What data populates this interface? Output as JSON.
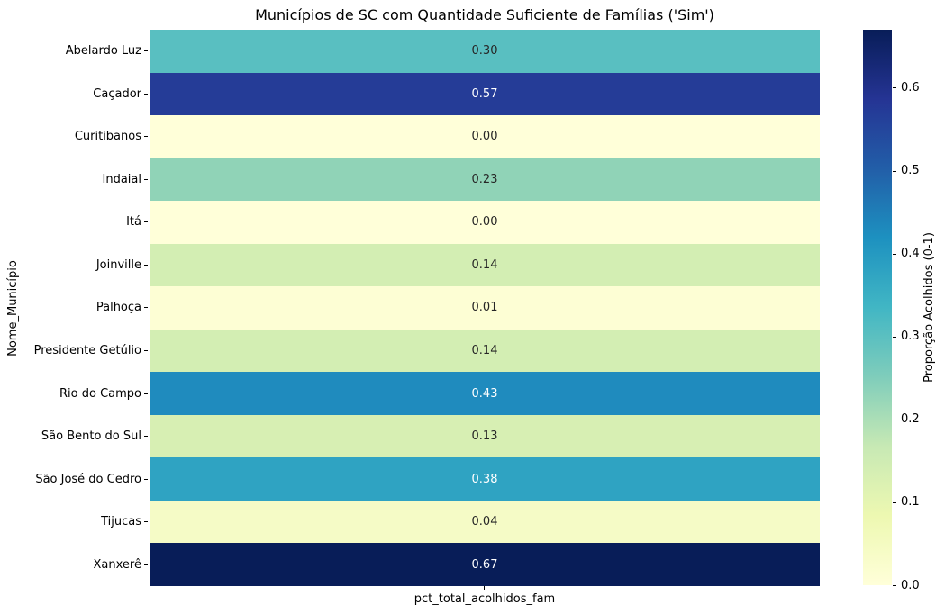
{
  "chart_data": {
    "type": "heatmap",
    "title": "Municípios de SC com Quantidade Suficiente de Famílias ('Sim')",
    "xlabel": "",
    "ylabel": "Nome_Município",
    "columns": [
      "pct_total_acolhidos_fam"
    ],
    "vmin": 0.0,
    "vmax": 0.67,
    "grid": false,
    "colormap_name": "YlGnBu",
    "colormap_stops": [
      {
        "pos": 0.0,
        "color": "#ffffd9"
      },
      {
        "pos": 0.125,
        "color": "#edf8b1"
      },
      {
        "pos": 0.25,
        "color": "#c7e9b4"
      },
      {
        "pos": 0.375,
        "color": "#7fcdbb"
      },
      {
        "pos": 0.5,
        "color": "#41b6c4"
      },
      {
        "pos": 0.625,
        "color": "#1d91c0"
      },
      {
        "pos": 0.75,
        "color": "#225ea8"
      },
      {
        "pos": 0.875,
        "color": "#253494"
      },
      {
        "pos": 1.0,
        "color": "#081d58"
      }
    ],
    "rows": [
      {
        "label": "Abelardo Luz",
        "value": 0.3,
        "display": "0.30",
        "color": "#59bfc1",
        "text_color": "#262626"
      },
      {
        "label": "Caçador",
        "value": 0.57,
        "display": "0.57",
        "color": "#253c97",
        "text_color": "#ffffff"
      },
      {
        "label": "Curitibanos",
        "value": 0.0,
        "display": "0.00",
        "color": "#ffffd9",
        "text_color": "#262626"
      },
      {
        "label": "Indaial",
        "value": 0.23,
        "display": "0.23",
        "color": "#90d3b7",
        "text_color": "#262626"
      },
      {
        "label": "Itá",
        "value": 0.0,
        "display": "0.00",
        "color": "#ffffd9",
        "text_color": "#262626"
      },
      {
        "label": "Joinville",
        "value": 0.14,
        "display": "0.14",
        "color": "#d3eeb3",
        "text_color": "#262626"
      },
      {
        "label": "Palhoça",
        "value": 0.01,
        "display": "0.01",
        "color": "#fdfed4",
        "text_color": "#262626"
      },
      {
        "label": "Presidente Getúlio",
        "value": 0.14,
        "display": "0.14",
        "color": "#d3eeb3",
        "text_color": "#262626"
      },
      {
        "label": "Rio do Campo",
        "value": 0.43,
        "display": "0.43",
        "color": "#1f8bbe",
        "text_color": "#ffffff"
      },
      {
        "label": "São Bento do Sul",
        "value": 0.13,
        "display": "0.13",
        "color": "#d7efb3",
        "text_color": "#262626"
      },
      {
        "label": "São José do Cedro",
        "value": 0.38,
        "display": "0.38",
        "color": "#2fa3c2",
        "text_color": "#ffffff"
      },
      {
        "label": "Tijucas",
        "value": 0.04,
        "display": "0.04",
        "color": "#f5fbc6",
        "text_color": "#262626"
      },
      {
        "label": "Xanxerê",
        "value": 0.67,
        "display": "0.67",
        "color": "#081d58",
        "text_color": "#ffffff"
      }
    ],
    "colorbar": {
      "label": "Proporção Acolhidos (0-1)",
      "ticks": [
        0.0,
        0.1,
        0.2,
        0.3,
        0.4,
        0.5,
        0.6
      ],
      "position": "right"
    }
  }
}
